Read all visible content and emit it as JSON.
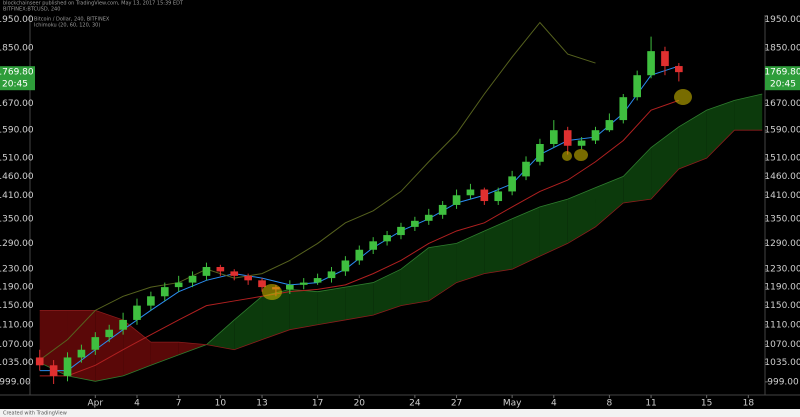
{
  "header": {
    "published": "blockchainseer published on TradingView.com, May 13, 2017 15:39 EDT",
    "symbol": "BITFINEX:BTCUSD, 240"
  },
  "footer": "Created with TradingView",
  "chart_data": {
    "type": "candlestick",
    "title": "Bitcoin / Dollar, 240, BITFINEX",
    "subtitle": "Ichimoku (20, 60, 120, 30)",
    "log_scale": true,
    "grid": false,
    "up_color": "#3fbf3f",
    "down_color": "#e03030",
    "x": [
      -4,
      -3,
      -2,
      -1,
      0,
      1,
      2,
      3,
      4,
      5,
      6,
      7,
      8,
      9,
      10,
      11,
      12,
      13,
      14,
      15,
      16,
      17,
      18,
      19,
      20,
      21,
      22,
      23,
      24,
      25,
      26,
      27,
      28,
      29,
      30,
      31,
      32,
      33,
      34,
      35,
      36,
      37,
      38,
      39,
      40,
      41,
      42
    ],
    "open": [
      1045,
      1030,
      1010,
      1045,
      1060,
      1085,
      1100,
      1120,
      1150,
      1170,
      1190,
      1200,
      1215,
      1235,
      1225,
      1215,
      1205,
      1190,
      1185,
      1195,
      1200,
      1210,
      1225,
      1250,
      1275,
      1295,
      1310,
      1330,
      1345,
      1360,
      1385,
      1410,
      1425,
      1395,
      1420,
      1460,
      1500,
      1550,
      1590,
      1545,
      1560,
      1590,
      1620,
      1690,
      1760,
      1840,
      1790
    ],
    "high": [
      1060,
      1040,
      1055,
      1070,
      1095,
      1110,
      1135,
      1165,
      1180,
      1200,
      1215,
      1225,
      1245,
      1240,
      1230,
      1220,
      1210,
      1195,
      1205,
      1210,
      1220,
      1235,
      1260,
      1285,
      1305,
      1320,
      1340,
      1355,
      1375,
      1395,
      1425,
      1440,
      1430,
      1430,
      1475,
      1515,
      1565,
      1620,
      1600,
      1570,
      1600,
      1640,
      1700,
      1775,
      1890,
      1855,
      1800
    ],
    "low": [
      1020,
      995,
      1000,
      1035,
      1050,
      1075,
      1090,
      1110,
      1140,
      1160,
      1180,
      1190,
      1205,
      1215,
      1205,
      1195,
      1180,
      1170,
      1175,
      1185,
      1195,
      1200,
      1215,
      1240,
      1265,
      1285,
      1300,
      1320,
      1335,
      1350,
      1375,
      1400,
      1385,
      1385,
      1410,
      1450,
      1490,
      1540,
      1520,
      1535,
      1550,
      1585,
      1610,
      1680,
      1750,
      1760,
      1740
    ],
    "close": [
      1030,
      1010,
      1045,
      1060,
      1085,
      1100,
      1120,
      1150,
      1170,
      1190,
      1200,
      1215,
      1235,
      1225,
      1215,
      1205,
      1190,
      1185,
      1195,
      1200,
      1210,
      1225,
      1250,
      1275,
      1295,
      1310,
      1330,
      1345,
      1360,
      1385,
      1410,
      1425,
      1395,
      1420,
      1460,
      1500,
      1550,
      1590,
      1545,
      1560,
      1590,
      1620,
      1690,
      1760,
      1840,
      1790,
      1770
    ],
    "lines": [
      {
        "color": "#2a8cf0",
        "x": [
          -4,
          -2,
          0,
          2,
          4,
          6,
          8,
          10,
          12,
          14,
          16,
          18,
          20,
          22,
          24,
          26,
          28,
          30,
          32,
          34,
          36,
          38,
          40,
          42
        ],
        "values": [
          1020,
          1020,
          1060,
          1100,
          1140,
          1180,
          1205,
          1220,
          1210,
          1195,
          1200,
          1230,
          1280,
          1320,
          1350,
          1390,
          1410,
          1440,
          1520,
          1560,
          1570,
          1640,
          1760,
          1790
        ]
      },
      {
        "color": "#b02020",
        "x": [
          -4,
          -2,
          0,
          2,
          4,
          6,
          8,
          10,
          12,
          14,
          16,
          18,
          20,
          22,
          24,
          26,
          28,
          30,
          32,
          34,
          36,
          38,
          40,
          42
        ],
        "values": [
          1010,
          1010,
          1030,
          1060,
          1090,
          1120,
          1150,
          1160,
          1170,
          1180,
          1185,
          1195,
          1220,
          1250,
          1290,
          1320,
          1340,
          1380,
          1420,
          1450,
          1500,
          1560,
          1650,
          1680
        ]
      },
      {
        "color": "#56621e",
        "x": [
          -4,
          -2,
          0,
          2,
          4,
          6,
          8,
          10,
          12,
          14,
          16,
          18,
          20,
          22,
          24,
          26,
          28,
          30,
          32,
          34,
          36
        ],
        "values": [
          1040,
          1080,
          1140,
          1170,
          1190,
          1200,
          1230,
          1210,
          1220,
          1250,
          1290,
          1340,
          1370,
          1420,
          1500,
          1580,
          1700,
          1820,
          1940,
          1830,
          1800
        ]
      }
    ],
    "cloud": {
      "up_color": "#0c3a0c",
      "down_color": "#5a0808",
      "x": [
        -4,
        -2,
        0,
        2,
        4,
        6,
        8,
        10,
        12,
        14,
        16,
        18,
        20,
        22,
        24,
        26,
        28,
        30,
        32,
        34,
        36,
        38,
        40,
        42,
        44,
        46,
        48
      ],
      "span_a": [
        1035,
        1010,
        1000,
        1010,
        1030,
        1050,
        1070,
        1120,
        1170,
        1185,
        1180,
        1190,
        1200,
        1230,
        1280,
        1290,
        1320,
        1350,
        1380,
        1400,
        1430,
        1460,
        1540,
        1600,
        1650,
        1680,
        1700
      ],
      "span_b": [
        1140,
        1140,
        1140,
        1120,
        1075,
        1075,
        1070,
        1060,
        1080,
        1100,
        1110,
        1120,
        1130,
        1150,
        1160,
        1200,
        1220,
        1230,
        1260,
        1290,
        1330,
        1390,
        1400,
        1480,
        1510,
        1590,
        1590
      ]
    },
    "xlim": [
      -4.7,
      48.2
    ],
    "xticks": [
      {
        "value": 0,
        "label": "Apr"
      },
      {
        "value": 3,
        "label": "4"
      },
      {
        "value": 6,
        "label": "7"
      },
      {
        "value": 9,
        "label": "10"
      },
      {
        "value": 12,
        "label": "13"
      },
      {
        "value": 16,
        "label": "17"
      },
      {
        "value": 19,
        "label": "20"
      },
      {
        "value": 23,
        "label": "24"
      },
      {
        "value": 26,
        "label": "27"
      },
      {
        "value": 30,
        "label": "May"
      },
      {
        "value": 33,
        "label": "4"
      },
      {
        "value": 37,
        "label": "8"
      },
      {
        "value": 40,
        "label": "11"
      },
      {
        "value": 44,
        "label": "15"
      },
      {
        "value": 47,
        "label": "18"
      }
    ],
    "ylim": [
      975,
      1967
    ],
    "yticks": [
      {
        "value": 1950,
        "label": "1950.00"
      },
      {
        "value": 1850,
        "label": "1850.00"
      },
      {
        "value": 1670,
        "label": "1670.00"
      },
      {
        "value": 1590,
        "label": "1590.00"
      },
      {
        "value": 1510,
        "label": "1510.00"
      },
      {
        "value": 1460,
        "label": "1460.00"
      },
      {
        "value": 1410,
        "label": "1410.00"
      },
      {
        "value": 1350,
        "label": "1350.00"
      },
      {
        "value": 1290,
        "label": "1290.00"
      },
      {
        "value": 1230,
        "label": "1230.00"
      },
      {
        "value": 1190,
        "label": "1190.00"
      },
      {
        "value": 1150,
        "label": "1150.00"
      },
      {
        "value": 1110,
        "label": "1110.00"
      },
      {
        "value": 1070,
        "label": "1070.00"
      },
      {
        "value": 1035,
        "label": "1035.00"
      },
      {
        "value": 999,
        "label": "999.00"
      }
    ],
    "last_price": {
      "value": 1769.8,
      "label": "1769.80"
    },
    "countdown": "20:45"
  }
}
